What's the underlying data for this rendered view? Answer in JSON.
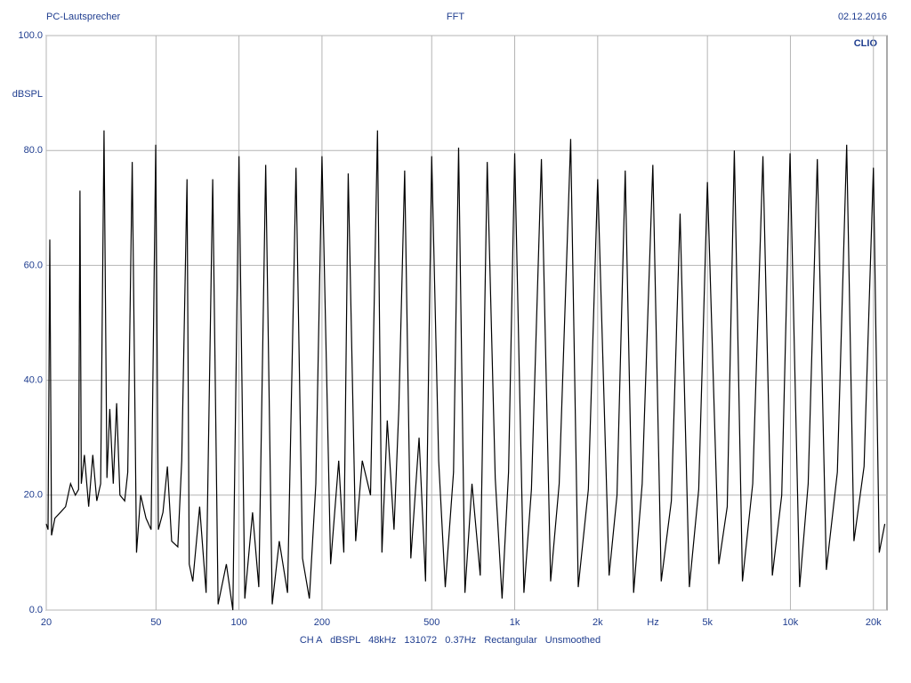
{
  "chart_data": {
    "type": "line",
    "title": "FFT",
    "subtitle": "PC-Lautsprecher",
    "date": "02.12.2016",
    "brand": "CLIO",
    "y_label": "dBSPL",
    "x_label": "Hz",
    "footer": "CH A   dBSPL   48kHz   131072   0.37Hz   Rectangular   Unsmoothed",
    "log_x": true,
    "grid": true,
    "xlim": [
      20,
      22400
    ],
    "ylim": [
      0,
      100
    ],
    "xticks": [
      20,
      50,
      100,
      200,
      500,
      {
        "value": 1000,
        "label": "1k"
      },
      {
        "value": 2000,
        "label": "2k"
      },
      {
        "value": 5000,
        "label": "5k"
      },
      {
        "value": 10000,
        "label": "10k"
      },
      {
        "value": 20000,
        "label": "20k"
      }
    ],
    "yticks": [
      {
        "value": 0,
        "label": "0.0"
      },
      {
        "value": 20,
        "label": "20.0"
      },
      {
        "value": 40,
        "label": "40.0"
      },
      {
        "value": 60,
        "label": "60.0"
      },
      {
        "value": 80,
        "label": "80.0"
      },
      {
        "value": 100,
        "label": "100.0"
      }
    ],
    "x": [
      20,
      20.3,
      20.6,
      20.9,
      21.5,
      22.5,
      23.5,
      24.5,
      25.5,
      26.2,
      26.5,
      26.8,
      27.5,
      28.5,
      29.5,
      30.5,
      31.5,
      32.4,
      33.2,
      34,
      35,
      36,
      37,
      38.5,
      39.5,
      41,
      42.5,
      44,
      46,
      48,
      49.9,
      51,
      53,
      55,
      57,
      60,
      62,
      64.8,
      66,
      68,
      72,
      76,
      80.3,
      84,
      90,
      95,
      100,
      105,
      112,
      118,
      125,
      132,
      140,
      150,
      161,
      170,
      180,
      190,
      200,
      215,
      230,
      240,
      249,
      265,
      280,
      300,
      318,
      330,
      345,
      365,
      380,
      399,
      420,
      450,
      475,
      500,
      530,
      560,
      600,
      626,
      660,
      700,
      750,
      795,
      850,
      900,
      950,
      1000,
      1080,
      1150,
      1250,
      1350,
      1450,
      1596,
      1700,
      1850,
      2000,
      2200,
      2350,
      2517,
      2700,
      2900,
      3170,
      3400,
      3700,
      3980,
      4300,
      4650,
      5000,
      5500,
      5900,
      6260,
      6700,
      7300,
      7950,
      8600,
      9300,
      9970,
      10800,
      11600,
      12520,
      13500,
      14800,
      16000,
      17000,
      18500,
      20000,
      21000,
      22000
    ],
    "series": [
      {
        "name": "CH A",
        "color": "#000000",
        "values": [
          15,
          14,
          64.5,
          13,
          16,
          17,
          18,
          22,
          20,
          21,
          73,
          22,
          27,
          18,
          27,
          19,
          22,
          83.5,
          23,
          35,
          22,
          36,
          20,
          19,
          24,
          78,
          10,
          20,
          16,
          14,
          81,
          14,
          17,
          25,
          12,
          11,
          26,
          75,
          8,
          5,
          18,
          3,
          75,
          1,
          8,
          0,
          79,
          2,
          17,
          4,
          77.5,
          1,
          12,
          3,
          77,
          9,
          2,
          22,
          79,
          8,
          26,
          10,
          76,
          12,
          26,
          20,
          83.5,
          10,
          33,
          14,
          35,
          76.5,
          9,
          30,
          5,
          79,
          26,
          4,
          24,
          80.5,
          3,
          22,
          6,
          78,
          23,
          2,
          24,
          79.5,
          3,
          21,
          78.5,
          5,
          22,
          82,
          4,
          21,
          75,
          6,
          20,
          76.5,
          3,
          22,
          77.5,
          5,
          19,
          69,
          4,
          21,
          74.5,
          8,
          18,
          80,
          5,
          22,
          79,
          6,
          20,
          79.5,
          4,
          22,
          78.5,
          7,
          24,
          81,
          12,
          25,
          77,
          10,
          15
        ]
      }
    ]
  }
}
